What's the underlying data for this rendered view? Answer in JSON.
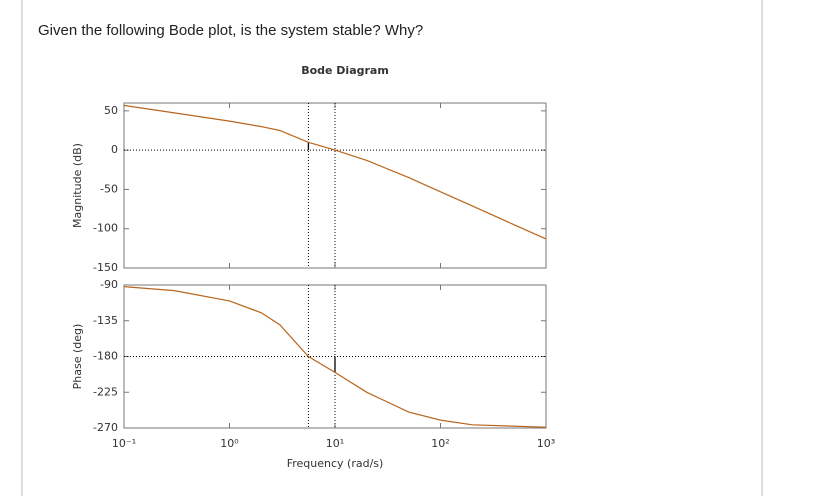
{
  "question": "Given the following Bode plot, is the system stable? Why?",
  "chart_data": [
    {
      "type": "line",
      "title": "Bode Diagram",
      "ylabel": "Magnitude (dB)",
      "log_x": true,
      "x": [
        0.1,
        0.2,
        0.5,
        1,
        2,
        3,
        5.6,
        10,
        20,
        50,
        100,
        200,
        500,
        1000
      ],
      "values": [
        57,
        51,
        43,
        37,
        30,
        25,
        10,
        0,
        -13,
        -35,
        -53,
        -71,
        -95,
        -113
      ],
      "color": "#b8651b",
      "xlim": [
        0.1,
        1000
      ],
      "ylim": [
        -150,
        60
      ],
      "yticks": [
        -150,
        -100,
        -50,
        0,
        50
      ],
      "vlines": [
        5.6,
        10
      ],
      "hline": 0,
      "margin_segment": {
        "x": 5.6,
        "y": [
          0,
          10
        ]
      }
    },
    {
      "type": "line",
      "ylabel": "Phase (deg)",
      "xlabel": "Frequency (rad/s)",
      "log_x": true,
      "x": [
        0.1,
        0.3,
        1,
        2,
        3,
        5.6,
        10,
        20,
        50,
        100,
        200,
        1000
      ],
      "values": [
        -92,
        -97,
        -110,
        -125,
        -140,
        -180,
        -200,
        -225,
        -250,
        -260,
        -266,
        -269
      ],
      "color": "#b8651b",
      "xlim": [
        0.1,
        1000
      ],
      "ylim": [
        -270,
        -90
      ],
      "yticks": [
        -270,
        -225,
        -180,
        -135,
        -90
      ],
      "xticks": [
        {
          "value": 0.1,
          "label": "10⁻¹"
        },
        {
          "value": 1,
          "label": "10⁰"
        },
        {
          "value": 10,
          "label": "10¹"
        },
        {
          "value": 100,
          "label": "10²"
        },
        {
          "value": 1000,
          "label": "10³"
        }
      ],
      "vlines": [
        5.6,
        10
      ],
      "hline": -180,
      "margin_segment": {
        "x": 10,
        "y": [
          -180,
          -200
        ]
      }
    }
  ]
}
